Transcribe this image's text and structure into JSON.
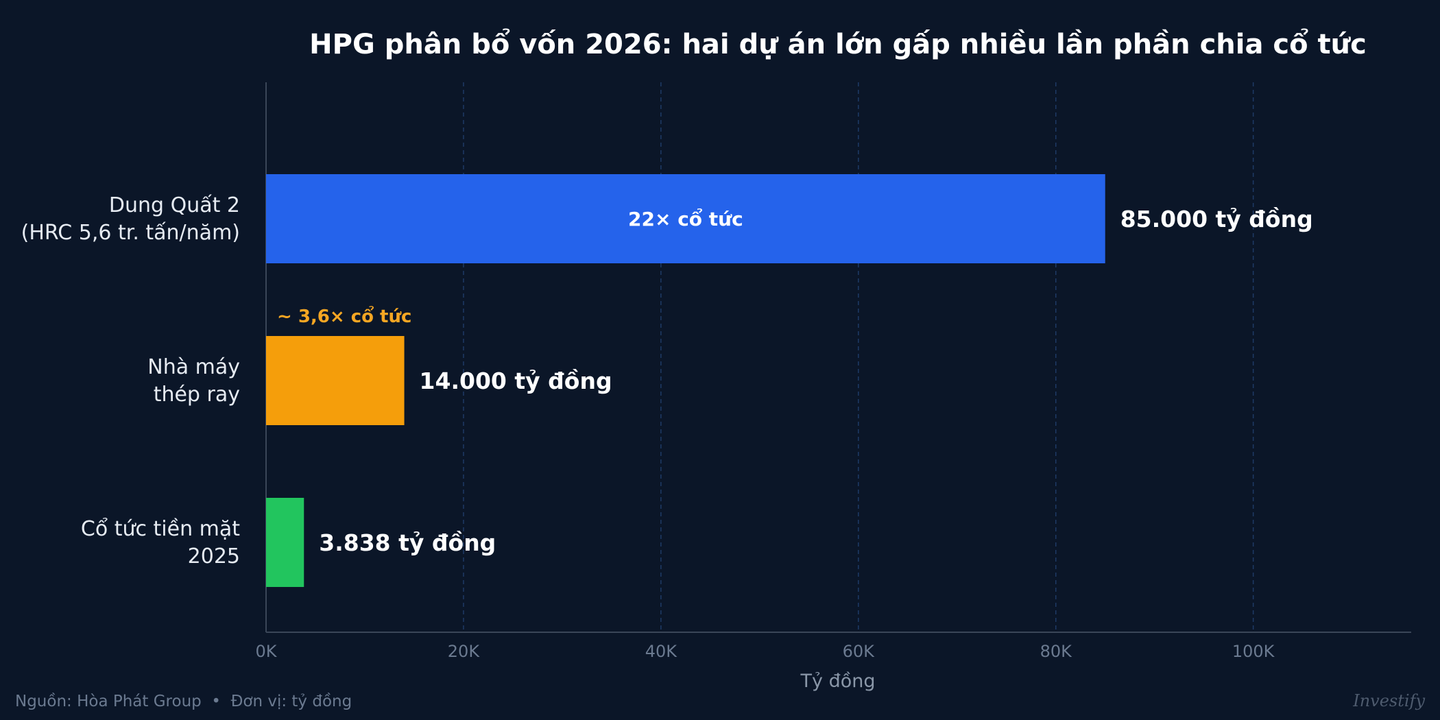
{
  "chart_data": {
    "type": "bar",
    "orientation": "horizontal",
    "title": "HPG phân bổ vốn 2026: hai dự án lớn gấp nhiều lần phần chia cổ tức",
    "xlabel": "Tỷ đồng",
    "ylabel": "",
    "xlim": [
      0,
      116000
    ],
    "x_ticks": [
      0,
      20000,
      40000,
      60000,
      80000,
      100000
    ],
    "x_tick_labels": [
      "0K",
      "20K",
      "40K",
      "60K",
      "80K",
      "100K"
    ],
    "grid": "vertical dashed",
    "categories": [
      [
        "Dung Quất 2",
        "(HRC 5,6 tr. tấn/năm)"
      ],
      [
        "Nhà máy",
        "thép ray"
      ],
      [
        "Cổ tức tiền mặt",
        "2025"
      ]
    ],
    "values": [
      85000,
      14000,
      3838
    ],
    "value_labels": [
      "85.000 tỷ đồng",
      "14.000 tỷ đồng",
      "3.838 tỷ đồng"
    ],
    "colors": [
      "#2563eb",
      "#f59e0b",
      "#22c55e"
    ],
    "annotations": [
      {
        "bar_index": 0,
        "text": "22× cổ tức",
        "placement": "inside",
        "color": "#ffffff"
      },
      {
        "bar_index": 1,
        "text": "~ 3,6× cổ tức",
        "placement": "above",
        "color": "#f5a623"
      }
    ]
  },
  "footer": {
    "source": "Nguồn: Hòa Phát Group  •  Đơn vị: tỷ đồng",
    "brand": "Investify"
  },
  "colors": {
    "background": "#0b1628",
    "grid": "#1e3a66",
    "axis": "#3a4658"
  }
}
